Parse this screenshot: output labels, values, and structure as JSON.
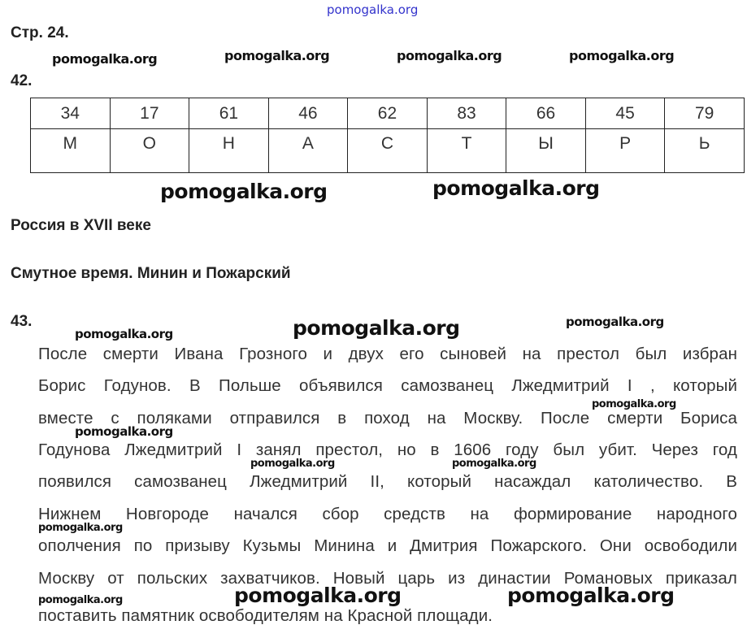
{
  "page_label": "Стр. 24.",
  "task42": {
    "number": "42.",
    "numbers": [
      "34",
      "17",
      "61",
      "46",
      "62",
      "83",
      "66",
      "45",
      "79"
    ],
    "letters": [
      "М",
      "О",
      "Н",
      "А",
      "С",
      "Т",
      "Ы",
      "Р",
      "Ь"
    ]
  },
  "section_title": "Россия в XVII веке",
  "subsection_title": "Смутное время. Минин и Пожарский",
  "task43": {
    "number": "43.",
    "lines": [
      "После смерти Ивана Грозного и двух его сыновей на престол был избран",
      "Борис Годунов. В Польше объявился самозванец Лжедмитрий I , который",
      "вместе с поляками отправился в поход на Москву. После смерти Бориса",
      "Годунова Лжедмитрий I занял престол, но в 1606 году был убит. Через год",
      "появился самозванец Лжедмитрий II, который насаждал католичество. В",
      "Нижнем Новгороде начался сбор средств на формирование народного",
      "ополчения по призыву Кузьмы Минина и Дмитрия Пожарского. Они освободили",
      "Москву от польских захватчиков. Новый царь из династии Романовых приказал",
      "поставить памятник освободителям на Красной площади."
    ]
  },
  "watermarks": [
    "pomogalka.org",
    "pomogalka.org",
    "pomogalka.org",
    "pomogalka.org",
    "pomogalka.org",
    "pomogalka.org",
    "pomogalka.org",
    "pomogalka.org",
    "pomogalka.org",
    "pomogalka.org",
    "pomogalka.org",
    "pomogalka.org",
    "pomogalka.org",
    "pomogalka.org",
    "pomogalka.org",
    "pomogalka.org",
    "pomogalka.org",
    "pomogalka.org"
  ],
  "colors": {
    "watermark_top": "#3333cc",
    "text": "#333333"
  }
}
